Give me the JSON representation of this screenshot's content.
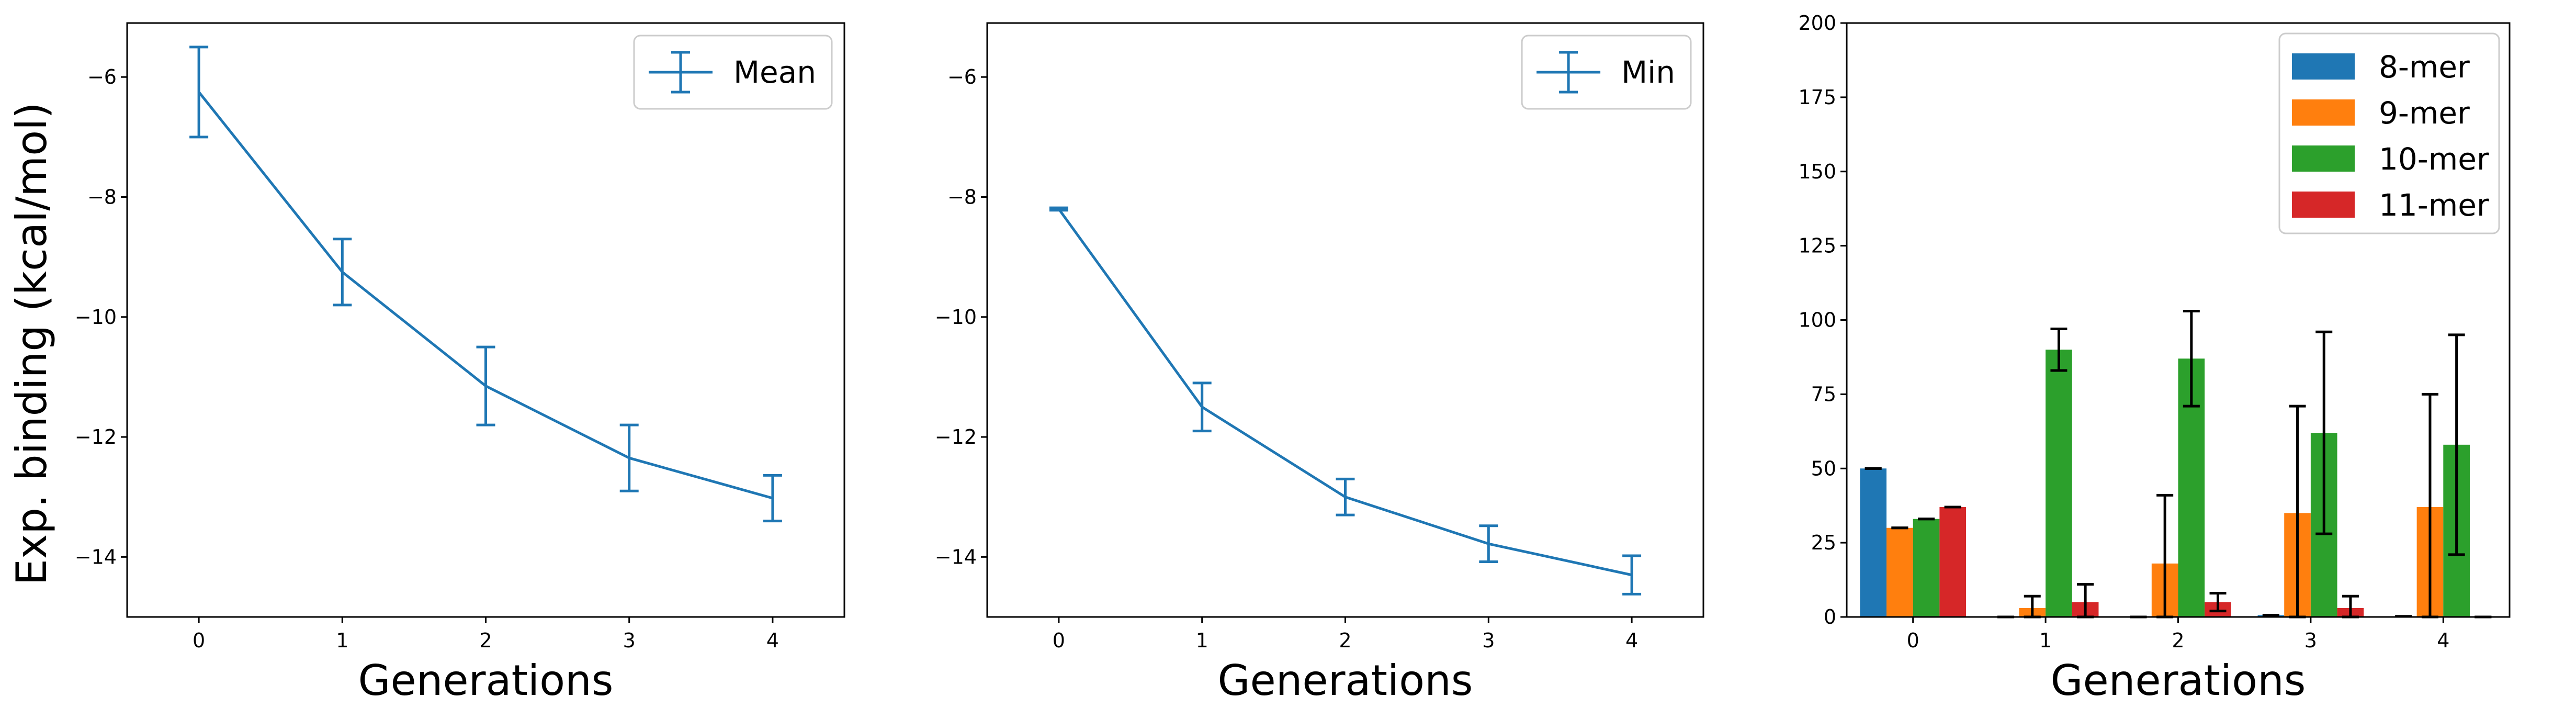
{
  "figure": {
    "shared_ylabel": "Exp. binding (kcal/mol)"
  },
  "chart_data": [
    {
      "type": "line",
      "xlabel": "Generations",
      "ylabel": "Exp. binding (kcal/mol)",
      "x": [
        0,
        1,
        2,
        3,
        4
      ],
      "xlim": [
        -0.5,
        4.5
      ],
      "ylim": [
        -15,
        -5.1
      ],
      "x_ticks": [
        "0",
        "1",
        "2",
        "3",
        "4"
      ],
      "y_ticks": [
        -14,
        -12,
        -10,
        -8,
        -6
      ],
      "y_tick_labels": [
        "−14",
        "−12",
        "−10",
        "−8",
        "−6"
      ],
      "legend_position": "top-right",
      "series": [
        {
          "name": "Mean",
          "color": "#1f77b4",
          "values": [
            -6.25,
            -9.25,
            -11.15,
            -12.35,
            -13.02
          ],
          "errors": [
            0.75,
            0.55,
            0.65,
            0.55,
            0.38
          ]
        }
      ]
    },
    {
      "type": "line",
      "xlabel": "Generations",
      "ylabel": "",
      "x": [
        0,
        1,
        2,
        3,
        4
      ],
      "xlim": [
        -0.5,
        4.5
      ],
      "ylim": [
        -15,
        -5.1
      ],
      "x_ticks": [
        "0",
        "1",
        "2",
        "3",
        "4"
      ],
      "y_ticks": [
        -14,
        -12,
        -10,
        -8,
        -6
      ],
      "y_tick_labels": [
        "−14",
        "−12",
        "−10",
        "−8",
        "−6"
      ],
      "legend_position": "top-right",
      "series": [
        {
          "name": "Min",
          "color": "#1f77b4",
          "values": [
            -8.2,
            -11.5,
            -13.0,
            -13.78,
            -14.3
          ],
          "errors": [
            0.02,
            0.4,
            0.3,
            0.3,
            0.32
          ]
        }
      ]
    },
    {
      "type": "bar",
      "xlabel": "Generations",
      "ylabel": "",
      "categories": [
        "0",
        "1",
        "2",
        "3",
        "4"
      ],
      "ylim": [
        0,
        200
      ],
      "y_ticks": [
        0,
        25,
        50,
        75,
        100,
        125,
        150,
        175,
        200
      ],
      "y_tick_labels": [
        "0",
        "25",
        "50",
        "75",
        "100",
        "125",
        "150",
        "175",
        "200"
      ],
      "legend_position": "top-right",
      "series": [
        {
          "name": "8-mer",
          "color": "#1f77b4",
          "values": [
            50,
            0,
            0,
            0.6,
            0.2
          ],
          "errors": [
            0,
            0,
            0,
            0,
            0
          ]
        },
        {
          "name": "9-mer",
          "color": "#ff7f0e",
          "values": [
            30,
            3,
            18,
            35,
            37
          ],
          "errors": [
            0,
            4,
            23,
            36,
            38
          ]
        },
        {
          "name": "10-mer",
          "color": "#2ca02c",
          "values": [
            33,
            90,
            87,
            62,
            58
          ],
          "errors": [
            0,
            7,
            16,
            34,
            37
          ]
        },
        {
          "name": "11-mer",
          "color": "#d62728",
          "values": [
            37,
            5,
            5,
            3,
            0
          ],
          "errors": [
            0,
            6,
            3,
            4,
            0
          ]
        }
      ]
    }
  ]
}
